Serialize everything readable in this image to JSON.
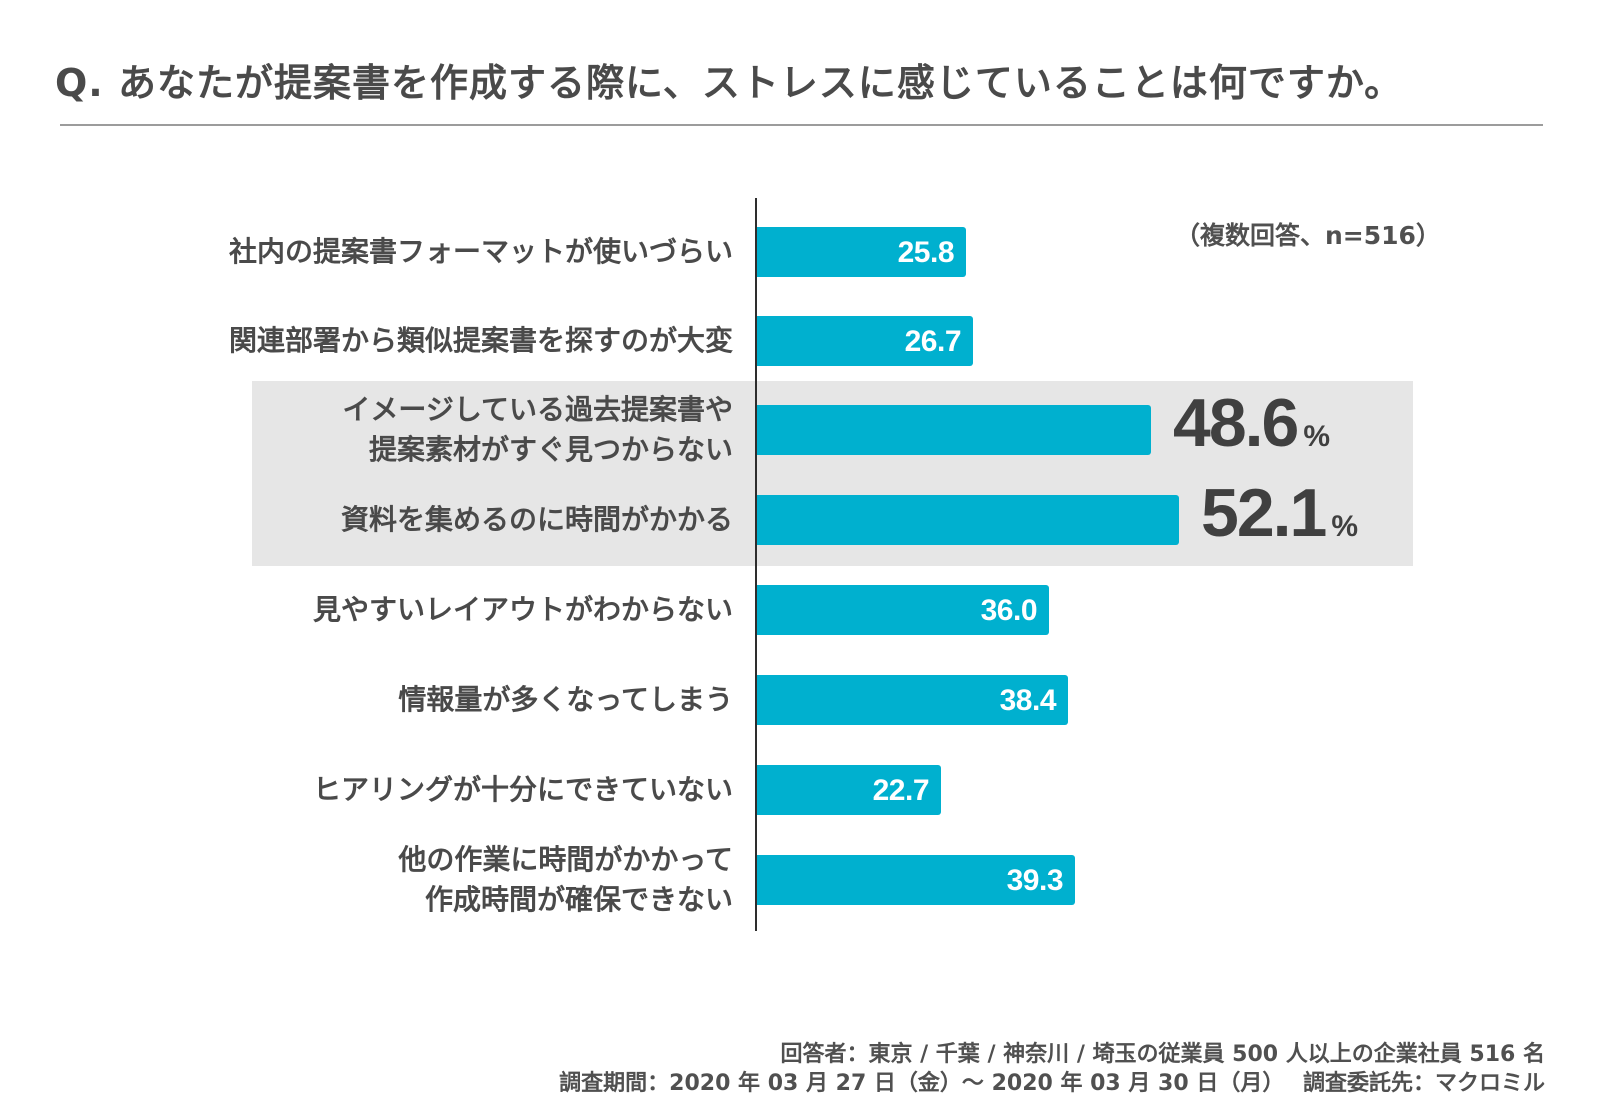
{
  "title": "Q. あなたが提案書を作成する際に、ストレスに感じていることは何ですか。",
  "note": "（複数回答、n=516）",
  "chart_data": {
    "type": "bar",
    "orientation": "horizontal",
    "categories": [
      "社内の提案書フォーマットが使いづらい",
      "関連部署から類似提案書を探すのが大変",
      "イメージしている過去提案書や\n提案素材がすぐ見つからない",
      "資料を集めるのに時間がかかる",
      "見やすいレイアウトがわからない",
      "情報量が多くなってしまう",
      "ヒアリングが十分にできていない",
      "他の作業に時間がかかって\n作成時間が確保できない"
    ],
    "values": [
      25.8,
      26.7,
      48.6,
      52.1,
      36.0,
      38.4,
      22.7,
      39.3
    ],
    "value_labels": [
      "25.8",
      "26.7",
      "48.6",
      "52.1",
      "36.0",
      "38.4",
      "22.7",
      "39.3"
    ],
    "highlighted": [
      false,
      false,
      true,
      true,
      false,
      false,
      false,
      false
    ],
    "unit": "%",
    "bar_color": "#00b0cf",
    "highlight_color": "#e6e6e6",
    "xlim": [
      0,
      70
    ]
  },
  "footer": {
    "line1": "回答者：東京 / 千葉 / 神奈川 / 埼玉の従業員 500 人以上の企業社員 516 名",
    "line2": "調査期間：2020 年 03 月 27 日（金）〜 2020 年 03 月 30 日（月）　 調査委託先：マクロミル"
  }
}
